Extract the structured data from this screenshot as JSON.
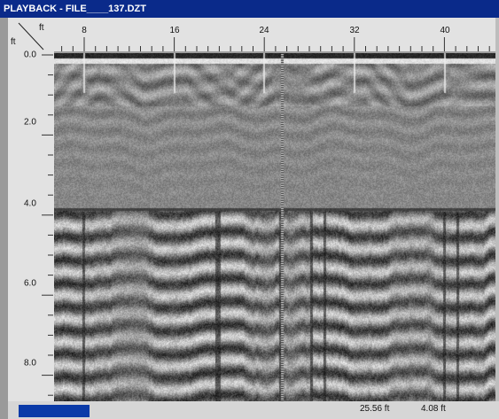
{
  "window": {
    "title": "PLAYBACK - FILE____137.DZT"
  },
  "rulers": {
    "x_unit": "ft",
    "y_unit": "ft",
    "x_labels": [
      "8",
      "16",
      "24",
      "32",
      "40"
    ],
    "y_labels": [
      "0.0",
      "2.0",
      "4.0",
      "6.0",
      "8.0"
    ]
  },
  "status": {
    "horizontal_position": "25.56 ft",
    "vertical_position": "4.08 ft"
  },
  "colors": {
    "titlebar": "#0a2a8a",
    "progress": "#0a3aa8",
    "radargram_base": "#8c8c8c"
  }
}
